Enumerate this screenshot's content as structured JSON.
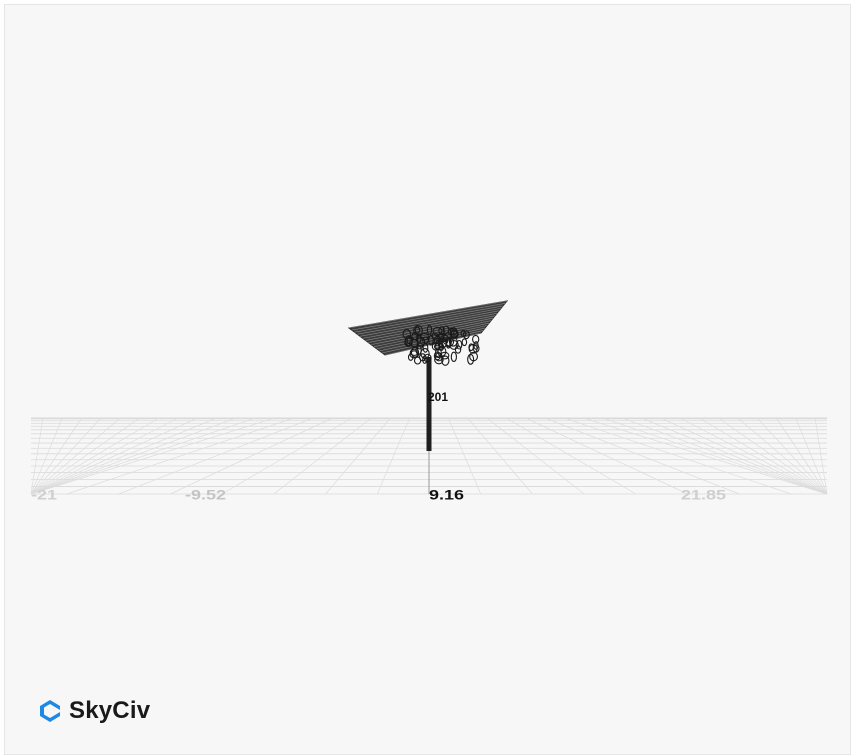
{
  "brand": {
    "name": "SkyCiv",
    "icon": "skyciv-logo-icon",
    "color": "#1e88e5"
  },
  "grid": {
    "axis_ticks": [
      "-21",
      "-9.52",
      "9.16",
      "21.85"
    ]
  },
  "model": {
    "member_label": "201"
  }
}
